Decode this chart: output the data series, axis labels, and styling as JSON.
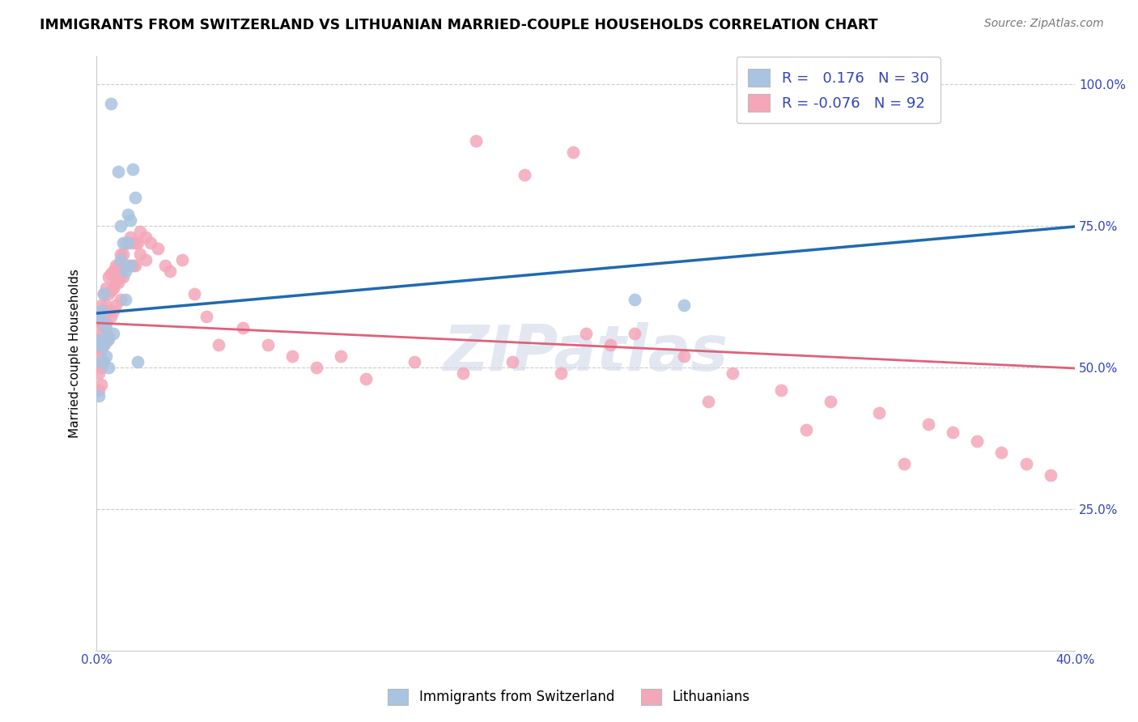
{
  "title": "IMMIGRANTS FROM SWITZERLAND VS LITHUANIAN MARRIED-COUPLE HOUSEHOLDS CORRELATION CHART",
  "source": "Source: ZipAtlas.com",
  "ylabel": "Married-couple Households",
  "xlim": [
    0.0,
    0.4
  ],
  "ylim": [
    0.0,
    1.05
  ],
  "ytick_values": [
    0.0,
    0.25,
    0.5,
    0.75,
    1.0
  ],
  "ytick_labels": [
    "",
    "25.0%",
    "50.0%",
    "75.0%",
    "100.0%"
  ],
  "xtick_values": [
    0.0,
    0.05,
    0.1,
    0.15,
    0.2,
    0.25,
    0.3,
    0.35,
    0.4
  ],
  "xtick_labels": [
    "0.0%",
    "",
    "",
    "",
    "",
    "",
    "",
    "",
    "40.0%"
  ],
  "legend_R_swiss": "0.176",
  "legend_N_swiss": "30",
  "legend_R_lith": "-0.076",
  "legend_N_lith": "92",
  "swiss_color": "#a8c4e0",
  "lith_color": "#f4a7b9",
  "swiss_line_color": "#1f6ab0",
  "lith_line_color": "#e0607a",
  "watermark": "ZIPatlas",
  "swiss_line_x0": 0.0,
  "swiss_line_y0": 0.595,
  "swiss_line_x1": 0.4,
  "swiss_line_y1": 0.748,
  "lith_line_x0": 0.0,
  "lith_line_y0": 0.578,
  "lith_line_x1": 0.4,
  "lith_line_y1": 0.498,
  "swiss_x": [
    0.006,
    0.009,
    0.01,
    0.01,
    0.011,
    0.012,
    0.012,
    0.013,
    0.013,
    0.014,
    0.014,
    0.015,
    0.016,
    0.017,
    0.001,
    0.001,
    0.001,
    0.002,
    0.002,
    0.002,
    0.003,
    0.003,
    0.003,
    0.004,
    0.004,
    0.005,
    0.005,
    0.007,
    0.22,
    0.24
  ],
  "swiss_y": [
    0.965,
    0.845,
    0.75,
    0.69,
    0.72,
    0.67,
    0.62,
    0.77,
    0.72,
    0.76,
    0.68,
    0.85,
    0.8,
    0.51,
    0.59,
    0.54,
    0.45,
    0.6,
    0.55,
    0.51,
    0.63,
    0.58,
    0.54,
    0.57,
    0.52,
    0.55,
    0.5,
    0.56,
    0.62,
    0.61
  ],
  "lith_x": [
    0.001,
    0.001,
    0.001,
    0.001,
    0.001,
    0.002,
    0.002,
    0.002,
    0.002,
    0.002,
    0.002,
    0.003,
    0.003,
    0.003,
    0.003,
    0.003,
    0.004,
    0.004,
    0.004,
    0.004,
    0.005,
    0.005,
    0.005,
    0.005,
    0.006,
    0.006,
    0.006,
    0.007,
    0.007,
    0.007,
    0.008,
    0.008,
    0.008,
    0.009,
    0.009,
    0.01,
    0.01,
    0.01,
    0.011,
    0.011,
    0.012,
    0.012,
    0.013,
    0.013,
    0.014,
    0.015,
    0.015,
    0.016,
    0.016,
    0.017,
    0.018,
    0.018,
    0.02,
    0.02,
    0.022,
    0.025,
    0.028,
    0.03,
    0.035,
    0.04,
    0.045,
    0.05,
    0.06,
    0.07,
    0.08,
    0.09,
    0.1,
    0.11,
    0.13,
    0.15,
    0.17,
    0.19,
    0.2,
    0.21,
    0.22,
    0.24,
    0.26,
    0.28,
    0.3,
    0.32,
    0.34,
    0.35,
    0.36,
    0.37,
    0.38,
    0.39,
    0.195,
    0.155,
    0.175,
    0.25,
    0.29,
    0.33
  ],
  "lith_y": [
    0.58,
    0.55,
    0.52,
    0.49,
    0.46,
    0.61,
    0.58,
    0.56,
    0.53,
    0.5,
    0.47,
    0.63,
    0.6,
    0.57,
    0.54,
    0.51,
    0.64,
    0.61,
    0.58,
    0.545,
    0.66,
    0.63,
    0.6,
    0.555,
    0.665,
    0.635,
    0.59,
    0.67,
    0.64,
    0.6,
    0.68,
    0.65,
    0.61,
    0.68,
    0.65,
    0.7,
    0.66,
    0.62,
    0.7,
    0.66,
    0.72,
    0.68,
    0.72,
    0.68,
    0.73,
    0.72,
    0.68,
    0.72,
    0.68,
    0.72,
    0.74,
    0.7,
    0.73,
    0.69,
    0.72,
    0.71,
    0.68,
    0.67,
    0.69,
    0.63,
    0.59,
    0.54,
    0.57,
    0.54,
    0.52,
    0.5,
    0.52,
    0.48,
    0.51,
    0.49,
    0.51,
    0.49,
    0.56,
    0.54,
    0.56,
    0.52,
    0.49,
    0.46,
    0.44,
    0.42,
    0.4,
    0.385,
    0.37,
    0.35,
    0.33,
    0.31,
    0.88,
    0.9,
    0.84,
    0.44,
    0.39,
    0.33
  ]
}
